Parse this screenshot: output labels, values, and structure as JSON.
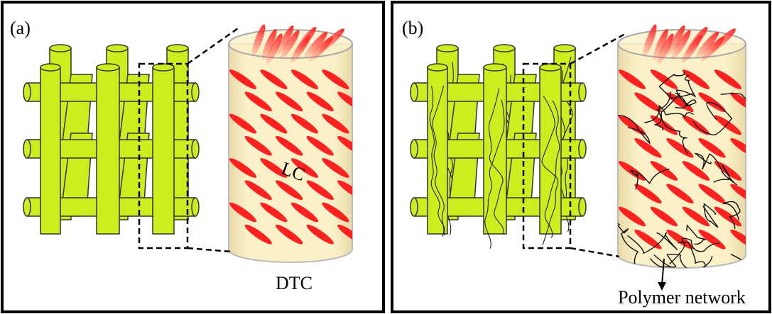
{
  "panel_a": {
    "label": "(a)",
    "lc_label": "LC",
    "cylinder_label": "DTC"
  },
  "panel_b": {
    "label": "(b)",
    "network_label": "Polymer network"
  }
}
